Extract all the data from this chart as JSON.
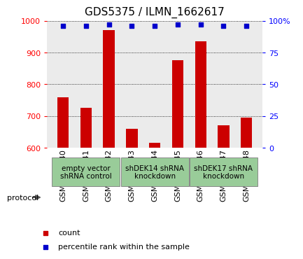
{
  "title": "GDS5375 / ILMN_1662617",
  "samples": [
    "GSM1486440",
    "GSM1486441",
    "GSM1486442",
    "GSM1486443",
    "GSM1486444",
    "GSM1486445",
    "GSM1486446",
    "GSM1486447",
    "GSM1486448"
  ],
  "counts": [
    760,
    725,
    970,
    660,
    615,
    875,
    935,
    670,
    695
  ],
  "percentile_ranks": [
    96,
    96,
    97,
    96,
    96,
    97,
    97,
    96,
    96
  ],
  "ylim_left": [
    600,
    1000
  ],
  "ylim_right": [
    0,
    100
  ],
  "yticks_left": [
    600,
    700,
    800,
    900,
    1000
  ],
  "yticks_right": [
    0,
    25,
    50,
    75,
    100
  ],
  "ytick_right_labels": [
    "0",
    "25",
    "50",
    "75",
    "100%"
  ],
  "groups": [
    {
      "label": "empty vector\nshRNA control",
      "start": 0,
      "end": 3
    },
    {
      "label": "shDEK14 shRNA\nknockdown",
      "start": 3,
      "end": 6
    },
    {
      "label": "shDEK17 shRNA\nknockdown",
      "start": 6,
      "end": 9
    }
  ],
  "bar_color": "#cc0000",
  "scatter_color": "#0000cc",
  "bg_color": "#ebebeb",
  "group_color": "#99cc99",
  "bar_width": 0.5,
  "legend_items": [
    {
      "label": "count",
      "color": "#cc0000"
    },
    {
      "label": "percentile rank within the sample",
      "color": "#0000cc"
    }
  ],
  "protocol_label": "protocol",
  "title_fontsize": 11,
  "tick_fontsize": 8,
  "group_fontsize": 7.5,
  "legend_fontsize": 8
}
